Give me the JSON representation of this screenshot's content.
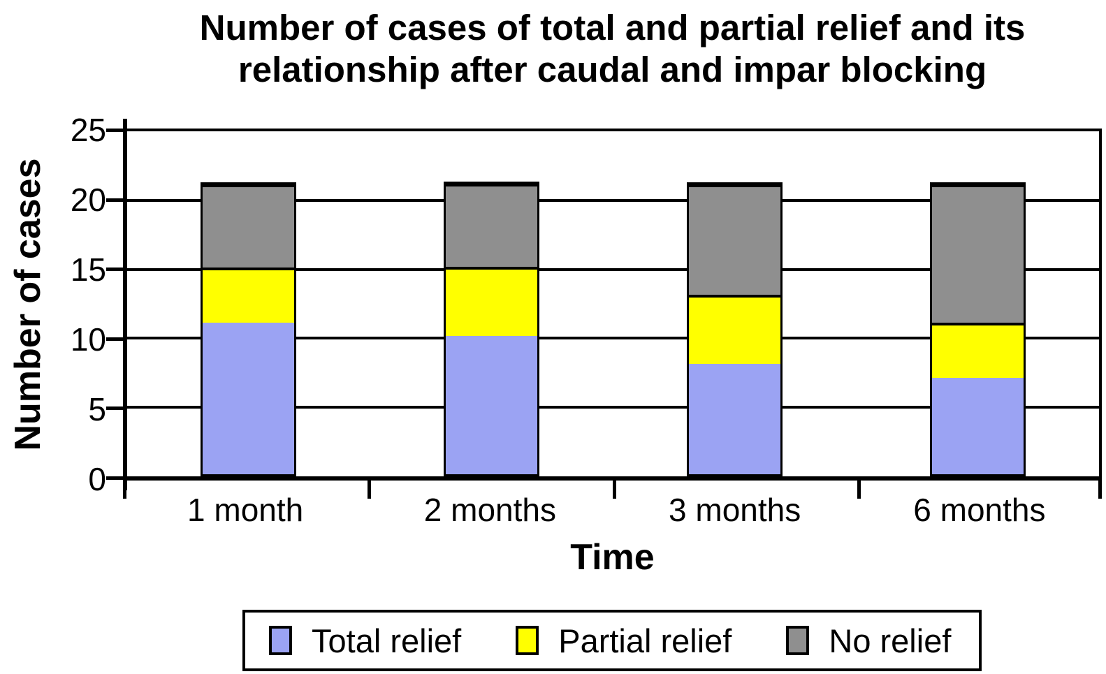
{
  "chart_data": {
    "type": "bar",
    "stacked": true,
    "title": "Number of cases of total and partial relief and its relationship after caudal and impar blocking",
    "title_lines": [
      "Number of cases of total and partial relief and its",
      "relationship after caudal and impar blocking"
    ],
    "xlabel": "Time",
    "ylabel": "Number of cases",
    "categories": [
      "1 month",
      "2 months",
      "3 months",
      "6 months"
    ],
    "series": [
      {
        "name": "Total relief",
        "color": "#9BA3F3",
        "values": [
          11,
          10,
          8,
          7
        ]
      },
      {
        "name": "Partial relief",
        "color": "#FFFF00",
        "values": [
          4,
          5,
          5,
          4
        ]
      },
      {
        "name": "No relief",
        "color": "#8F8F8F",
        "values": [
          6,
          6,
          8,
          10
        ]
      }
    ],
    "ylim": [
      0,
      25
    ],
    "yticks": [
      0,
      5,
      10,
      15,
      20,
      25
    ],
    "grid": true,
    "legend_position": "bottom",
    "axis_color": "#000000",
    "bar_border_color": "#000000",
    "background_color": "#FFFFFF"
  }
}
